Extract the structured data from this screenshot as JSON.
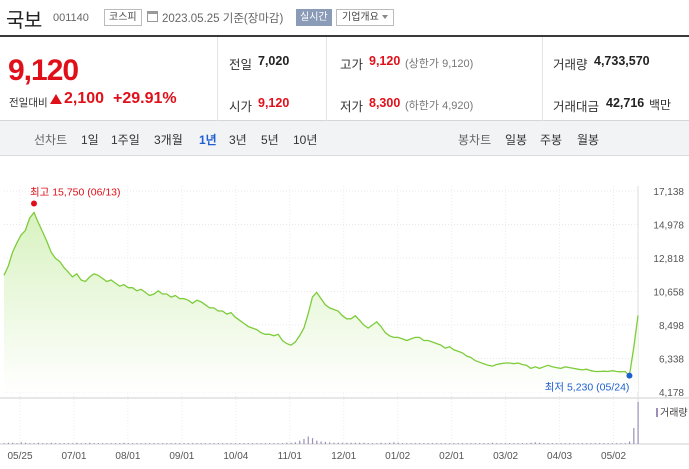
{
  "header": {
    "stock_name": "국보",
    "stock_code": "001140",
    "market": "코스피",
    "basis": "2023.05.25 기준(장마감)",
    "realtime": "실시간",
    "overview": "기업개요"
  },
  "price": {
    "current": "9,120",
    "change_label": "전일대비",
    "change": "2,100",
    "rate": "+29.91%",
    "prev_close_label": "전일",
    "prev_close": "7,020",
    "open_label": "시가",
    "open": "9,120",
    "high_label": "고가",
    "high": "9,120",
    "high_sub": "(상한가 9,120)",
    "low_label": "저가",
    "low": "8,300",
    "low_sub": "(하한가 4,920)",
    "volume_label": "거래량",
    "volume": "4,733,570",
    "amount_label": "거래대금",
    "amount": "42,716",
    "amount_unit": "백만"
  },
  "tabs": {
    "line_label": "선차트",
    "periods": [
      "1일",
      "1주일",
      "3개월",
      "1년",
      "3년",
      "5년",
      "10년"
    ],
    "active": "1년",
    "candle_label": "봉차트",
    "candles": [
      "일봉",
      "주봉",
      "월봉"
    ]
  },
  "chart_data": {
    "type": "area",
    "y_ticks": [
      "17,138",
      "14,978",
      "12,818",
      "10,658",
      "8,498",
      "6,338",
      "4,178"
    ],
    "ylim": [
      4178,
      17138
    ],
    "x_ticks": [
      "05/25",
      "07/01",
      "08/01",
      "09/01",
      "10/04",
      "11/01",
      "12/01",
      "01/02",
      "02/01",
      "03/02",
      "04/03",
      "05/02"
    ],
    "high_annotation": "최고 15,750 (06/13)",
    "low_annotation": "최저 5,230 (05/24)",
    "volume_label": "거래량",
    "series": [
      {
        "values": [
          11700,
          12300,
          13200,
          13800,
          14300,
          14600,
          15400,
          15750,
          15100,
          14500,
          13900,
          13200,
          12800,
          12600,
          12200,
          11900,
          11600,
          11800,
          11400,
          11300,
          11600,
          11800,
          11700,
          11500,
          11300,
          11400,
          11200,
          11000,
          11100,
          10900,
          10900,
          10700,
          10800,
          10600,
          10400,
          10500,
          10700,
          10500,
          10500,
          10300,
          10400,
          10200,
          10200,
          10100,
          9900,
          10100,
          10000,
          9800,
          9600,
          9600,
          9400,
          9400,
          9200,
          9300,
          9000,
          8800,
          8600,
          8400,
          8300,
          8200,
          8000,
          7900,
          7900,
          7800,
          7900,
          7500,
          7300,
          7200,
          7400,
          7800,
          8300,
          9200,
          10300,
          10600,
          10200,
          9800,
          9600,
          9500,
          9400,
          9100,
          8900,
          8900,
          9100,
          8800,
          8500,
          8300,
          8500,
          8700,
          8400,
          8000,
          7800,
          7700,
          7700,
          7600,
          7500,
          7600,
          7700,
          7700,
          7500,
          7500,
          7400,
          7300,
          7200,
          7000,
          7100,
          6900,
          6800,
          6700,
          6500,
          6400,
          6200,
          6100,
          6000,
          5900,
          5850,
          5950,
          6000,
          6050,
          6050,
          6000,
          6050,
          5950,
          5900,
          5700,
          5800,
          5700,
          5800,
          5900,
          5800,
          5750,
          5700,
          5800,
          5750,
          5700,
          5650,
          5600,
          5650,
          5550,
          5500,
          5500,
          5520,
          5500,
          5550,
          5500,
          5480,
          5500,
          5230,
          7020,
          9120
        ]
      }
    ],
    "volume": [
      2,
      3,
      3,
      2,
      4,
      3,
      2,
      2,
      3,
      2,
      2,
      3,
      2,
      2,
      2,
      2,
      2,
      3,
      2,
      2,
      3,
      2,
      2,
      2,
      2,
      2,
      2,
      2,
      3,
      2,
      2,
      2,
      2,
      2,
      2,
      2,
      2,
      2,
      2,
      2,
      2,
      2,
      2,
      2,
      2,
      2,
      2,
      2,
      2,
      2,
      2,
      2,
      2,
      2,
      2,
      2,
      2,
      2,
      2,
      2,
      2,
      2,
      2,
      2,
      2,
      2,
      3,
      3,
      4,
      8,
      12,
      18,
      14,
      8,
      6,
      5,
      4,
      3,
      3,
      3,
      3,
      3,
      3,
      3,
      3,
      2,
      2,
      2,
      3,
      2,
      3,
      4,
      3,
      2,
      2,
      2,
      2,
      2,
      2,
      2,
      2,
      2,
      2,
      2,
      2,
      2,
      2,
      2,
      2,
      2,
      2,
      2,
      2,
      2,
      3,
      2,
      2,
      2,
      2,
      2,
      2,
      2,
      2,
      3,
      4,
      3,
      2,
      2,
      2,
      2,
      2,
      2,
      2,
      2,
      2,
      2,
      2,
      2,
      2,
      2,
      2,
      2,
      2,
      2,
      2,
      2,
      6,
      38,
      100
    ],
    "colors": {
      "line": "#7dcc3a",
      "fill_top": "#d8f2c0",
      "fill_bottom": "#ffffff",
      "high_marker": "#e0101a",
      "low_marker": "#1f5fd0",
      "volume": "#9b8fb8"
    }
  }
}
